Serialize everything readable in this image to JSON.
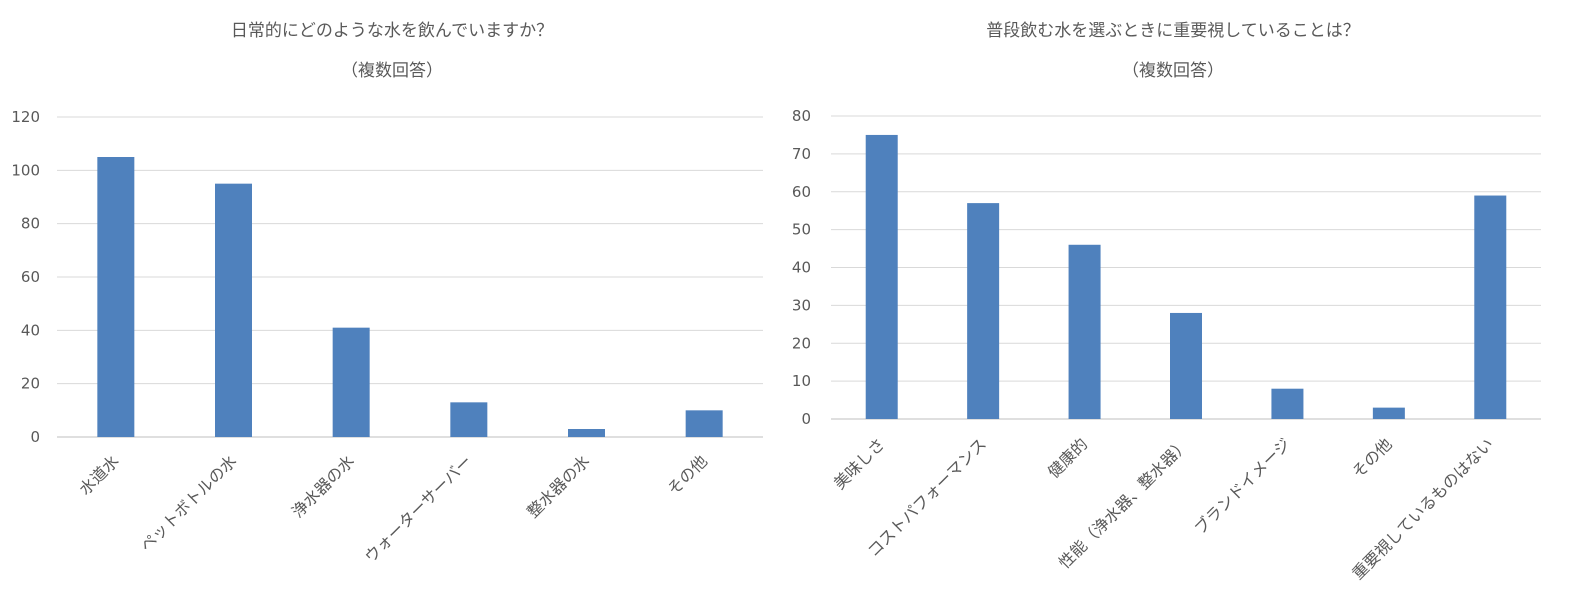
{
  "chart_data": [
    {
      "type": "bar",
      "title": "日常的にどのような水を飲んでいますか？",
      "subtitle": "（複数回答）",
      "categories": [
        "水道水",
        "ペットボトルの水",
        "浄水器の水",
        "ウォーターサーバー",
        "整水器の水",
        "その他"
      ],
      "values": [
        105,
        95,
        41,
        13,
        3,
        10
      ],
      "ylim": [
        0,
        120
      ],
      "yticks": [
        0,
        20,
        40,
        60,
        80,
        100,
        120
      ],
      "xlabel": "",
      "ylabel": "",
      "grid": true,
      "legend": "none",
      "color": "#4F81BD"
    },
    {
      "type": "bar",
      "title": "普段飲む水を選ぶときに重要視していることは？",
      "subtitle": "（複数回答）",
      "categories": [
        "美味しさ",
        "コストパフォーマンス",
        "健康的",
        "性能（浄水器、整水器）",
        "ブランドイメージ",
        "その他",
        "重要視しているものはない"
      ],
      "values": [
        75,
        57,
        46,
        28,
        8,
        3,
        59
      ],
      "ylim": [
        0,
        80
      ],
      "yticks": [
        0,
        10,
        20,
        30,
        40,
        50,
        60,
        70,
        80
      ],
      "xlabel": "",
      "ylabel": "",
      "grid": true,
      "legend": "none",
      "color": "#4F81BD"
    }
  ]
}
